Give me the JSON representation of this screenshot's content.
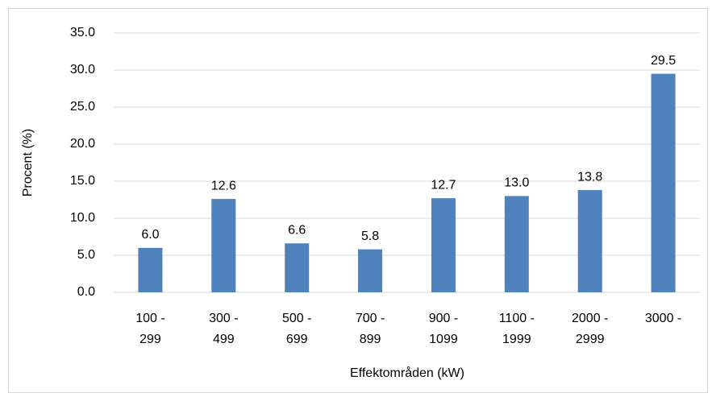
{
  "chart_data": {
    "type": "bar",
    "x_label": "Effektområden (kW)",
    "y_label": "Procent (%)",
    "categories": [
      [
        "100 -",
        "299"
      ],
      [
        "300 -",
        "499"
      ],
      [
        "500 -",
        "699"
      ],
      [
        "700 -",
        "899"
      ],
      [
        "900 -",
        "1099"
      ],
      [
        "1100 -",
        "1999"
      ],
      [
        "2000 -",
        "2999"
      ],
      [
        "3000 -"
      ]
    ],
    "values": [
      6.0,
      12.6,
      6.6,
      5.8,
      12.7,
      13.0,
      13.8,
      29.5
    ],
    "value_labels": [
      "6.0",
      "12.6",
      "6.6",
      "5.8",
      "12.7",
      "13.0",
      "13.8",
      "29.5"
    ],
    "color": "#4f81bd",
    "ylim": [
      0,
      35
    ],
    "yticks": [
      {
        "value": 0,
        "label": "0.0"
      },
      {
        "value": 5,
        "label": "5.0"
      },
      {
        "value": 10,
        "label": "10.0"
      },
      {
        "value": 15,
        "label": "15.0"
      },
      {
        "value": 20,
        "label": "20.0"
      },
      {
        "value": 25,
        "label": "25.0"
      },
      {
        "value": 30,
        "label": "30.0"
      },
      {
        "value": 35,
        "label": "35.0"
      }
    ],
    "grid": true
  }
}
